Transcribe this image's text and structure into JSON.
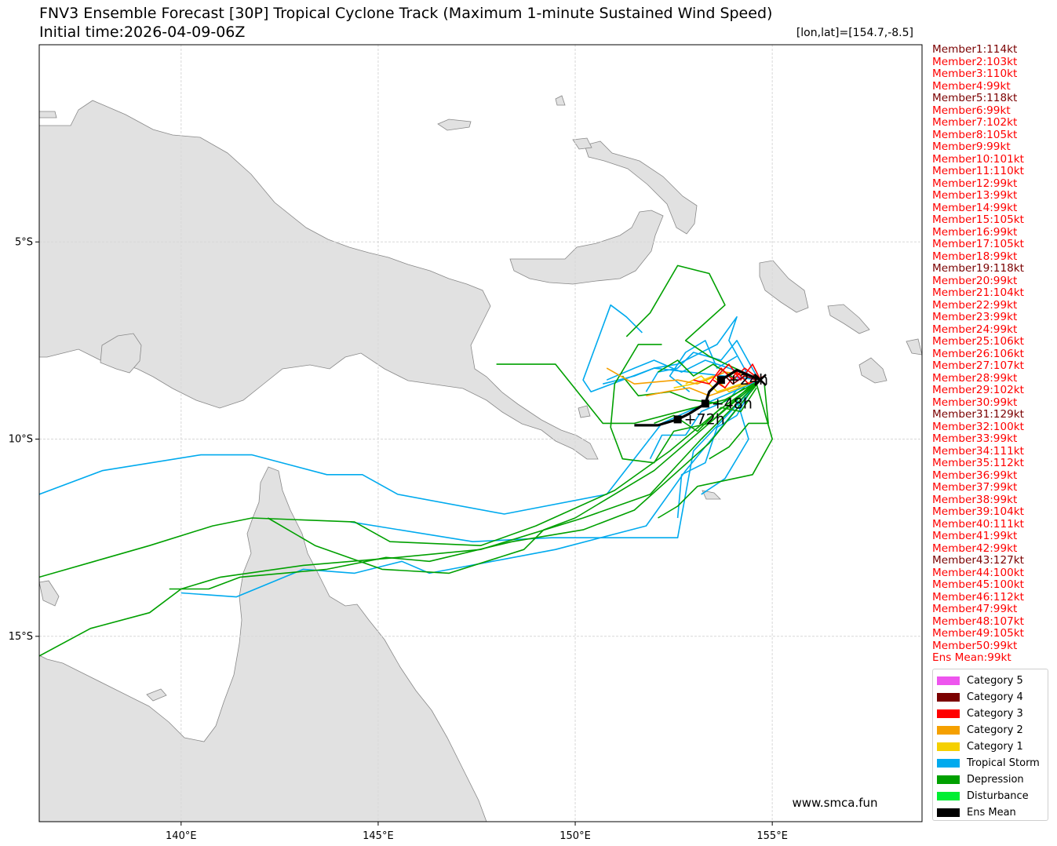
{
  "title": "FNV3 Ensemble Forecast [30P] Tropical Cyclone Track (Maximum 1-minute Sustained Wind Speed)",
  "subtitle": "Initial time:2026-04-09-06Z",
  "position_label": "[lon,lat]=[154.7,-8.5]",
  "watermark": "www.smca.fun",
  "axes": {
    "lon_ticks": [
      "140°E",
      "145°E",
      "150°E",
      "155°E"
    ],
    "lat_ticks": [
      "5°S",
      "10°S",
      "15°S"
    ],
    "lon_range": [
      136.4,
      158.8
    ],
    "lat_range": [
      0.0,
      -19.7
    ]
  },
  "members": [
    {
      "label": "Member1:114kt",
      "color": "#7b0000"
    },
    {
      "label": "Member2:103kt",
      "color": "#ff0000"
    },
    {
      "label": "Member3:110kt",
      "color": "#ff0000"
    },
    {
      "label": "Member4:99kt",
      "color": "#ff0000"
    },
    {
      "label": "Member5:118kt",
      "color": "#7b0000"
    },
    {
      "label": "Member6:99kt",
      "color": "#ff0000"
    },
    {
      "label": "Member7:102kt",
      "color": "#ff0000"
    },
    {
      "label": "Member8:105kt",
      "color": "#ff0000"
    },
    {
      "label": "Member9:99kt",
      "color": "#ff0000"
    },
    {
      "label": "Member10:101kt",
      "color": "#ff0000"
    },
    {
      "label": "Member11:110kt",
      "color": "#ff0000"
    },
    {
      "label": "Member12:99kt",
      "color": "#ff0000"
    },
    {
      "label": "Member13:99kt",
      "color": "#ff0000"
    },
    {
      "label": "Member14:99kt",
      "color": "#ff0000"
    },
    {
      "label": "Member15:105kt",
      "color": "#ff0000"
    },
    {
      "label": "Member16:99kt",
      "color": "#ff0000"
    },
    {
      "label": "Member17:105kt",
      "color": "#ff0000"
    },
    {
      "label": "Member18:99kt",
      "color": "#ff0000"
    },
    {
      "label": "Member19:118kt",
      "color": "#7b0000"
    },
    {
      "label": "Member20:99kt",
      "color": "#ff0000"
    },
    {
      "label": "Member21:104kt",
      "color": "#ff0000"
    },
    {
      "label": "Member22:99kt",
      "color": "#ff0000"
    },
    {
      "label": "Member23:99kt",
      "color": "#ff0000"
    },
    {
      "label": "Member24:99kt",
      "color": "#ff0000"
    },
    {
      "label": "Member25:106kt",
      "color": "#ff0000"
    },
    {
      "label": "Member26:106kt",
      "color": "#ff0000"
    },
    {
      "label": "Member27:107kt",
      "color": "#ff0000"
    },
    {
      "label": "Member28:99kt",
      "color": "#ff0000"
    },
    {
      "label": "Member29:102kt",
      "color": "#ff0000"
    },
    {
      "label": "Member30:99kt",
      "color": "#ff0000"
    },
    {
      "label": "Member31:129kt",
      "color": "#7b0000"
    },
    {
      "label": "Member32:100kt",
      "color": "#ff0000"
    },
    {
      "label": "Member33:99kt",
      "color": "#ff0000"
    },
    {
      "label": "Member34:111kt",
      "color": "#ff0000"
    },
    {
      "label": "Member35:112kt",
      "color": "#ff0000"
    },
    {
      "label": "Member36:99kt",
      "color": "#ff0000"
    },
    {
      "label": "Member37:99kt",
      "color": "#ff0000"
    },
    {
      "label": "Member38:99kt",
      "color": "#ff0000"
    },
    {
      "label": "Member39:104kt",
      "color": "#ff0000"
    },
    {
      "label": "Member40:111kt",
      "color": "#ff0000"
    },
    {
      "label": "Member41:99kt",
      "color": "#ff0000"
    },
    {
      "label": "Member42:99kt",
      "color": "#ff0000"
    },
    {
      "label": "Member43:127kt",
      "color": "#7b0000"
    },
    {
      "label": "Member44:100kt",
      "color": "#ff0000"
    },
    {
      "label": "Member45:100kt",
      "color": "#ff0000"
    },
    {
      "label": "Member46:112kt",
      "color": "#ff0000"
    },
    {
      "label": "Member47:99kt",
      "color": "#ff0000"
    },
    {
      "label": "Member48:107kt",
      "color": "#ff0000"
    },
    {
      "label": "Member49:105kt",
      "color": "#ff0000"
    },
    {
      "label": "Member50:99kt",
      "color": "#ff0000"
    },
    {
      "label": "Ens Mean:99kt",
      "color": "#ff0000"
    }
  ],
  "legend": [
    {
      "label": "Category 5",
      "color": "#ee55ee"
    },
    {
      "label": "Category 4",
      "color": "#7b0000"
    },
    {
      "label": "Category 3",
      "color": "#ff0000"
    },
    {
      "label": "Category 2",
      "color": "#f5a000"
    },
    {
      "label": "Category 1",
      "color": "#f5d000"
    },
    {
      "label": "Tropical Storm",
      "color": "#00aaee"
    },
    {
      "label": "Depression",
      "color": "#00a000"
    },
    {
      "label": "Disturbance",
      "color": "#00ee33"
    },
    {
      "label": "Ens Mean",
      "color": "#000000"
    }
  ],
  "ens_mean_track": {
    "points": [
      [
        154.7,
        -8.5
      ],
      [
        154.1,
        -8.25
      ],
      [
        153.7,
        -8.5
      ],
      [
        153.4,
        -8.8
      ],
      [
        153.3,
        -9.1
      ],
      [
        152.9,
        -9.35
      ],
      [
        152.6,
        -9.5
      ],
      [
        152.1,
        -9.65
      ],
      [
        151.5,
        -9.65
      ]
    ],
    "labels": [
      {
        "text": "+24h",
        "lon": 153.7,
        "lat": -8.5
      },
      {
        "text": "+48h",
        "lon": 153.3,
        "lat": -9.1
      },
      {
        "text": "+72h",
        "lon": 152.6,
        "lat": -9.5
      }
    ]
  },
  "member_tracks": [
    {
      "cat": "TS",
      "pts": [
        [
          154.7,
          -8.5
        ],
        [
          153.3,
          -9.1
        ],
        [
          152.2,
          -9.6
        ],
        [
          150.8,
          -11.4
        ],
        [
          148.2,
          -11.9
        ],
        [
          145.5,
          -11.4
        ],
        [
          144.6,
          -10.9
        ],
        [
          143.7,
          -10.9
        ],
        [
          141.8,
          -10.4
        ],
        [
          140.5,
          -10.4
        ],
        [
          138.0,
          -10.8
        ],
        [
          136.4,
          -11.4
        ]
      ]
    },
    {
      "cat": "TD",
      "pts": [
        [
          154.7,
          -8.5
        ],
        [
          153.6,
          -9.3
        ],
        [
          152.4,
          -10.3
        ],
        [
          151.0,
          -11.3
        ],
        [
          149.0,
          -12.2
        ],
        [
          147.6,
          -12.7
        ],
        [
          145.3,
          -12.6
        ],
        [
          144.4,
          -12.1
        ],
        [
          141.8,
          -12.0
        ],
        [
          140.8,
          -12.2
        ],
        [
          139.2,
          -12.7
        ],
        [
          137.8,
          -13.1
        ],
        [
          136.4,
          -13.5
        ]
      ]
    },
    {
      "cat": "TD",
      "pts": [
        [
          154.7,
          -8.5
        ],
        [
          153.2,
          -10.0
        ],
        [
          151.9,
          -11.4
        ],
        [
          150.2,
          -12.0
        ],
        [
          147.6,
          -12.8
        ],
        [
          145.5,
          -13.0
        ],
        [
          143.1,
          -13.2
        ],
        [
          141.0,
          -13.5
        ],
        [
          140.0,
          -13.8
        ],
        [
          139.2,
          -14.4
        ],
        [
          137.7,
          -14.8
        ],
        [
          136.4,
          -15.5
        ]
      ]
    },
    {
      "cat": "TS",
      "pts": [
        [
          154.7,
          -8.5
        ],
        [
          153.0,
          -10.3
        ],
        [
          152.6,
          -12.5
        ],
        [
          149.4,
          -12.5
        ],
        [
          147.4,
          -12.6
        ],
        [
          144.3,
          -12.1
        ]
      ]
    },
    {
      "cat": "TD",
      "pts": [
        [
          154.7,
          -8.5
        ],
        [
          153.4,
          -10.1
        ],
        [
          151.5,
          -11.8
        ],
        [
          150.2,
          -12.3
        ],
        [
          148.4,
          -12.6
        ],
        [
          146.3,
          -13.1
        ],
        [
          145.2,
          -13.0
        ],
        [
          143.7,
          -13.3
        ],
        [
          141.5,
          -13.5
        ],
        [
          140.7,
          -13.8
        ],
        [
          139.7,
          -13.8
        ]
      ]
    },
    {
      "cat": "TS",
      "pts": [
        [
          154.7,
          -8.5
        ],
        [
          152.8,
          -10.8
        ],
        [
          151.8,
          -12.2
        ],
        [
          149.5,
          -12.8
        ],
        [
          146.3,
          -13.4
        ],
        [
          145.6,
          -13.1
        ],
        [
          144.4,
          -13.4
        ],
        [
          143.1,
          -13.3
        ],
        [
          141.4,
          -14.0
        ],
        [
          140.0,
          -13.9
        ]
      ]
    },
    {
      "cat": "TD",
      "pts": [
        [
          154.7,
          -8.5
        ],
        [
          153.4,
          -9.6
        ],
        [
          152.0,
          -10.8
        ],
        [
          150.0,
          -12.0
        ],
        [
          149.2,
          -12.3
        ],
        [
          148.7,
          -12.8
        ],
        [
          146.8,
          -13.4
        ],
        [
          145.1,
          -13.3
        ],
        [
          143.4,
          -12.7
        ],
        [
          142.2,
          -12.0
        ]
      ]
    },
    {
      "cat": "TD",
      "pts": [
        [
          154.7,
          -8.5
        ],
        [
          153.8,
          -9.0
        ],
        [
          151.5,
          -9.6
        ],
        [
          150.7,
          -9.6
        ],
        [
          149.5,
          -8.1
        ],
        [
          148.0,
          -8.1
        ]
      ]
    },
    {
      "cat": "TS",
      "pts": [
        [
          154.7,
          -8.5
        ],
        [
          152.0,
          -8.2
        ],
        [
          150.4,
          -8.8
        ],
        [
          150.2,
          -8.5
        ],
        [
          150.9,
          -6.6
        ],
        [
          151.3,
          -6.9
        ],
        [
          151.7,
          -7.3
        ]
      ]
    },
    {
      "cat": "TD",
      "pts": [
        [
          154.7,
          -8.5
        ],
        [
          153.4,
          -7.9
        ],
        [
          152.8,
          -7.5
        ],
        [
          153.8,
          -6.6
        ],
        [
          153.4,
          -5.8
        ],
        [
          152.6,
          -5.6
        ],
        [
          151.9,
          -6.8
        ],
        [
          151.3,
          -7.4
        ]
      ]
    },
    {
      "cat": "TD",
      "pts": [
        [
          154.6,
          -8.6
        ],
        [
          155.0,
          -10.0
        ],
        [
          154.5,
          -10.9
        ],
        [
          153.1,
          -11.2
        ],
        [
          152.6,
          -11.7
        ],
        [
          152.1,
          -12.0
        ]
      ]
    },
    {
      "cat": "TS",
      "pts": [
        [
          154.6,
          -8.6
        ],
        [
          154.1,
          -9.0
        ],
        [
          154.4,
          -10.0
        ],
        [
          153.8,
          -11.0
        ],
        [
          153.2,
          -11.4
        ]
      ]
    },
    {
      "cat": "TS",
      "pts": [
        [
          154.4,
          -8.4
        ],
        [
          153.9,
          -7.5
        ],
        [
          154.1,
          -6.9
        ],
        [
          153.6,
          -7.6
        ],
        [
          152.6,
          -8.1
        ],
        [
          152.0,
          -8.2
        ],
        [
          151.5,
          -8.4
        ],
        [
          150.7,
          -8.6
        ]
      ]
    },
    {
      "cat": "TD",
      "pts": [
        [
          154.5,
          -8.6
        ],
        [
          153.4,
          -9.6
        ],
        [
          152.5,
          -9.8
        ],
        [
          152.0,
          -10.6
        ],
        [
          151.2,
          -10.5
        ],
        [
          150.9,
          -9.7
        ],
        [
          151.0,
          -8.6
        ],
        [
          151.6,
          -7.6
        ],
        [
          152.2,
          -7.6
        ]
      ]
    },
    {
      "cat": "TS",
      "pts": [
        [
          154.6,
          -8.5
        ],
        [
          154.1,
          -9.4
        ],
        [
          153.6,
          -9.7
        ],
        [
          153.3,
          -10.6
        ],
        [
          152.7,
          -10.9
        ],
        [
          152.6,
          -12.0
        ]
      ]
    },
    {
      "cat": "TD",
      "pts": [
        [
          154.3,
          -8.7
        ],
        [
          153.7,
          -9.1
        ],
        [
          152.9,
          -9.0
        ],
        [
          152.4,
          -8.8
        ],
        [
          151.6,
          -8.9
        ],
        [
          151.2,
          -8.4
        ]
      ]
    },
    {
      "cat": "TS",
      "pts": [
        [
          154.2,
          -8.3
        ],
        [
          153.3,
          -8.0
        ],
        [
          152.7,
          -8.3
        ],
        [
          152.0,
          -8.0
        ],
        [
          151.5,
          -8.2
        ],
        [
          150.8,
          -8.5
        ]
      ]
    },
    {
      "cat": "C2",
      "pts": [
        [
          154.6,
          -8.5
        ],
        [
          154.0,
          -8.7
        ],
        [
          153.4,
          -8.9
        ],
        [
          152.9,
          -8.7
        ],
        [
          152.3,
          -8.8
        ],
        [
          151.8,
          -8.9
        ]
      ]
    },
    {
      "cat": "C2",
      "pts": [
        [
          154.5,
          -8.4
        ],
        [
          153.8,
          -8.3
        ],
        [
          153.1,
          -8.6
        ],
        [
          152.6,
          -8.5
        ],
        [
          151.5,
          -8.6
        ],
        [
          150.8,
          -8.2
        ]
      ]
    },
    {
      "cat": "C1",
      "pts": [
        [
          154.4,
          -8.6
        ],
        [
          153.9,
          -8.8
        ],
        [
          153.5,
          -8.4
        ],
        [
          153.0,
          -8.6
        ],
        [
          152.5,
          -8.7
        ]
      ]
    },
    {
      "cat": "C3",
      "pts": [
        [
          154.7,
          -8.5
        ],
        [
          154.3,
          -8.2
        ],
        [
          154.0,
          -8.5
        ],
        [
          153.7,
          -8.2
        ],
        [
          153.4,
          -8.6
        ],
        [
          153.0,
          -8.5
        ]
      ]
    },
    {
      "cat": "C3",
      "pts": [
        [
          154.7,
          -8.5
        ],
        [
          154.5,
          -8.1
        ],
        [
          154.2,
          -8.5
        ],
        [
          153.9,
          -8.1
        ],
        [
          153.6,
          -8.4
        ]
      ]
    },
    {
      "cat": "C3",
      "pts": [
        [
          154.8,
          -8.4
        ],
        [
          154.4,
          -8.6
        ],
        [
          154.1,
          -8.3
        ],
        [
          153.8,
          -8.7
        ],
        [
          153.5,
          -8.5
        ]
      ]
    },
    {
      "cat": "C4",
      "pts": [
        [
          154.6,
          -8.5
        ],
        [
          154.3,
          -8.4
        ],
        [
          154.0,
          -8.6
        ],
        [
          153.8,
          -8.4
        ]
      ]
    },
    {
      "cat": "C5",
      "pts": [
        [
          154.5,
          -8.5
        ],
        [
          154.3,
          -8.3
        ],
        [
          154.1,
          -8.5
        ]
      ]
    },
    {
      "cat": "TS",
      "pts": [
        [
          154.1,
          -7.9
        ],
        [
          153.6,
          -8.2
        ],
        [
          153.3,
          -7.5
        ],
        [
          152.8,
          -7.8
        ],
        [
          152.4,
          -8.4
        ],
        [
          152.9,
          -8.8
        ]
      ]
    },
    {
      "cat": "TD",
      "pts": [
        [
          154.6,
          -8.7
        ],
        [
          154.2,
          -9.3
        ],
        [
          153.7,
          -9.2
        ],
        [
          153.1,
          -9.8
        ],
        [
          152.5,
          -9.4
        ],
        [
          152.0,
          -9.6
        ]
      ]
    },
    {
      "cat": "TS",
      "pts": [
        [
          154.6,
          -8.4
        ],
        [
          154.1,
          -7.5
        ],
        [
          153.7,
          -8.0
        ],
        [
          153.0,
          -7.8
        ],
        [
          152.6,
          -8.2
        ],
        [
          152.1,
          -8.3
        ],
        [
          151.8,
          -8.8
        ]
      ]
    },
    {
      "cat": "TD",
      "pts": [
        [
          154.8,
          -8.6
        ],
        [
          154.9,
          -9.6
        ],
        [
          154.4,
          -9.6
        ],
        [
          153.9,
          -10.2
        ],
        [
          153.4,
          -10.5
        ]
      ]
    },
    {
      "cat": "TS",
      "pts": [
        [
          154.3,
          -8.5
        ],
        [
          153.9,
          -9.0
        ],
        [
          153.2,
          -9.3
        ],
        [
          152.8,
          -9.9
        ],
        [
          152.2,
          -9.9
        ],
        [
          151.9,
          -10.5
        ]
      ]
    },
    {
      "cat": "C1",
      "pts": [
        [
          154.2,
          -8.6
        ],
        [
          153.6,
          -8.8
        ],
        [
          153.2,
          -8.4
        ],
        [
          152.8,
          -8.6
        ]
      ]
    },
    {
      "cat": "TD",
      "pts": [
        [
          154.1,
          -8.5
        ],
        [
          153.5,
          -8.1
        ],
        [
          153.0,
          -8.4
        ],
        [
          152.6,
          -8.0
        ],
        [
          152.1,
          -8.3
        ]
      ]
    }
  ]
}
